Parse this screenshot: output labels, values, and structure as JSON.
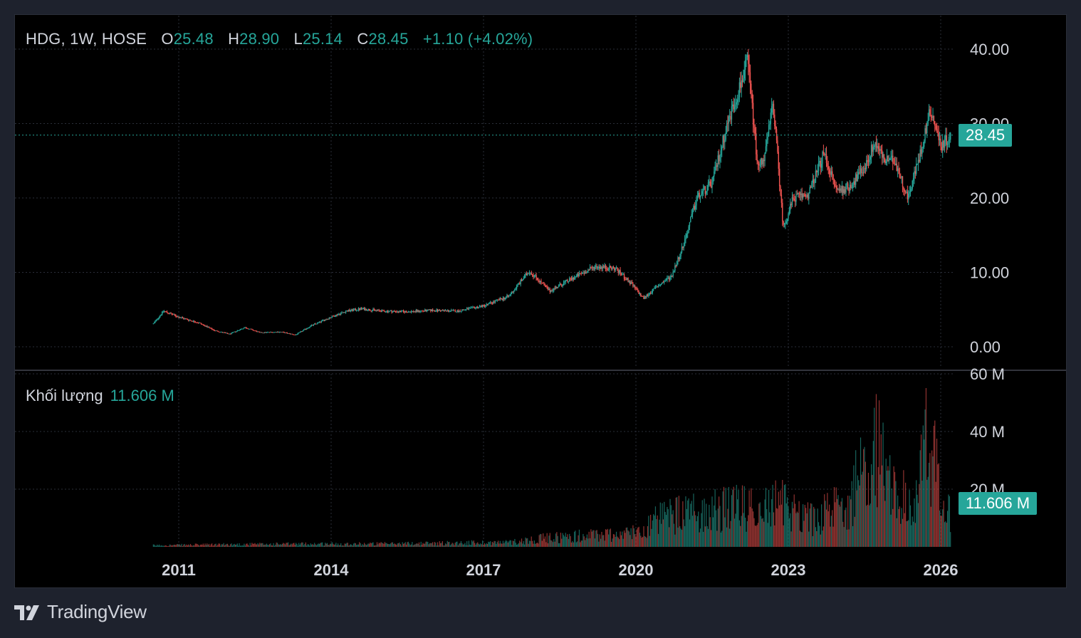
{
  "header": {
    "symbol": "HDG, 1W, HOSE",
    "open_label": "O",
    "open": "25.48",
    "high_label": "H",
    "high": "28.90",
    "low_label": "L",
    "low": "25.14",
    "close_label": "C",
    "close": "28.45",
    "change": "+1.10 (+4.02%)"
  },
  "volume_legend": {
    "label": "Khối lượng",
    "value": "11.606 M"
  },
  "last_price_badge": "28.45",
  "last_volume_badge": "11.606 M",
  "brand": "TradingView",
  "colors": {
    "up": "#26a69a",
    "down": "#ef5350",
    "background": "#000000",
    "grid": "#2a2e39",
    "text": "#d1d4dc"
  },
  "chart_data": {
    "type": "candlestick",
    "price_axis": {
      "ticks": [
        "0.00",
        "10.00",
        "20.00",
        "30.00",
        "40.00"
      ],
      "values": [
        0,
        10,
        20,
        30,
        40
      ],
      "last_price": 28.45
    },
    "volume_axis": {
      "ticks": [
        "20 M",
        "40 M",
        "60 M"
      ],
      "values": [
        20,
        40,
        60
      ],
      "unit": "M",
      "last_volume": 11.606
    },
    "x_axis": {
      "ticks": [
        "2011",
        "2014",
        "2017",
        "2020",
        "2023",
        "2026"
      ],
      "years": [
        2011,
        2014,
        2017,
        2020,
        2023,
        2026
      ]
    },
    "grid": true,
    "series_close": [
      [
        2010.5,
        3.1
      ],
      [
        2010.7,
        4.8
      ],
      [
        2011.0,
        4.0
      ],
      [
        2011.4,
        3.2
      ],
      [
        2011.7,
        2.2
      ],
      [
        2012.0,
        1.7
      ],
      [
        2012.3,
        2.6
      ],
      [
        2012.6,
        1.9
      ],
      [
        2013.0,
        2.0
      ],
      [
        2013.3,
        1.6
      ],
      [
        2013.6,
        2.8
      ],
      [
        2014.0,
        4.0
      ],
      [
        2014.3,
        4.8
      ],
      [
        2014.6,
        5.1
      ],
      [
        2015.0,
        4.8
      ],
      [
        2015.5,
        4.7
      ],
      [
        2016.0,
        4.9
      ],
      [
        2016.5,
        4.8
      ],
      [
        2017.0,
        5.5
      ],
      [
        2017.5,
        6.8
      ],
      [
        2017.9,
        10.2
      ],
      [
        2018.3,
        7.5
      ],
      [
        2018.7,
        9.0
      ],
      [
        2019.2,
        10.8
      ],
      [
        2019.6,
        10.5
      ],
      [
        2019.9,
        8.5
      ],
      [
        2020.15,
        6.5
      ],
      [
        2020.4,
        8.0
      ],
      [
        2020.7,
        9.5
      ],
      [
        2020.95,
        14.0
      ],
      [
        2021.2,
        20.0
      ],
      [
        2021.5,
        22.0
      ],
      [
        2021.8,
        30.0
      ],
      [
        2022.0,
        34.0
      ],
      [
        2022.2,
        38.5
      ],
      [
        2022.4,
        24.0
      ],
      [
        2022.55,
        26.0
      ],
      [
        2022.7,
        33.0
      ],
      [
        2022.9,
        16.0
      ],
      [
        2023.1,
        20.0
      ],
      [
        2023.4,
        20.5
      ],
      [
        2023.7,
        26.0
      ],
      [
        2023.95,
        21.0
      ],
      [
        2024.2,
        21.5
      ],
      [
        2024.5,
        24.0
      ],
      [
        2024.7,
        27.5
      ],
      [
        2024.9,
        25.0
      ],
      [
        2025.1,
        25.0
      ],
      [
        2025.35,
        20.0
      ],
      [
        2025.6,
        26.0
      ],
      [
        2025.8,
        32.0
      ],
      [
        2026.0,
        27.0
      ],
      [
        2026.2,
        28.45
      ]
    ],
    "series_volume": [
      [
        2010.5,
        0.5
      ],
      [
        2012.0,
        0.8
      ],
      [
        2013.8,
        1.0
      ],
      [
        2015.0,
        1.0
      ],
      [
        2017.5,
        1.5
      ],
      [
        2018.3,
        3.0
      ],
      [
        2019.9,
        4.5
      ],
      [
        2020.6,
        10.0
      ],
      [
        2021.5,
        12.0
      ],
      [
        2022.2,
        13.0
      ],
      [
        2022.9,
        14.0
      ],
      [
        2023.5,
        9.0
      ],
      [
        2024.2,
        15.0
      ],
      [
        2024.7,
        35.0
      ],
      [
        2025.0,
        20.0
      ],
      [
        2025.5,
        12.0
      ],
      [
        2025.75,
        40.0
      ],
      [
        2026.0,
        15.0
      ],
      [
        2026.2,
        11.606
      ]
    ]
  }
}
